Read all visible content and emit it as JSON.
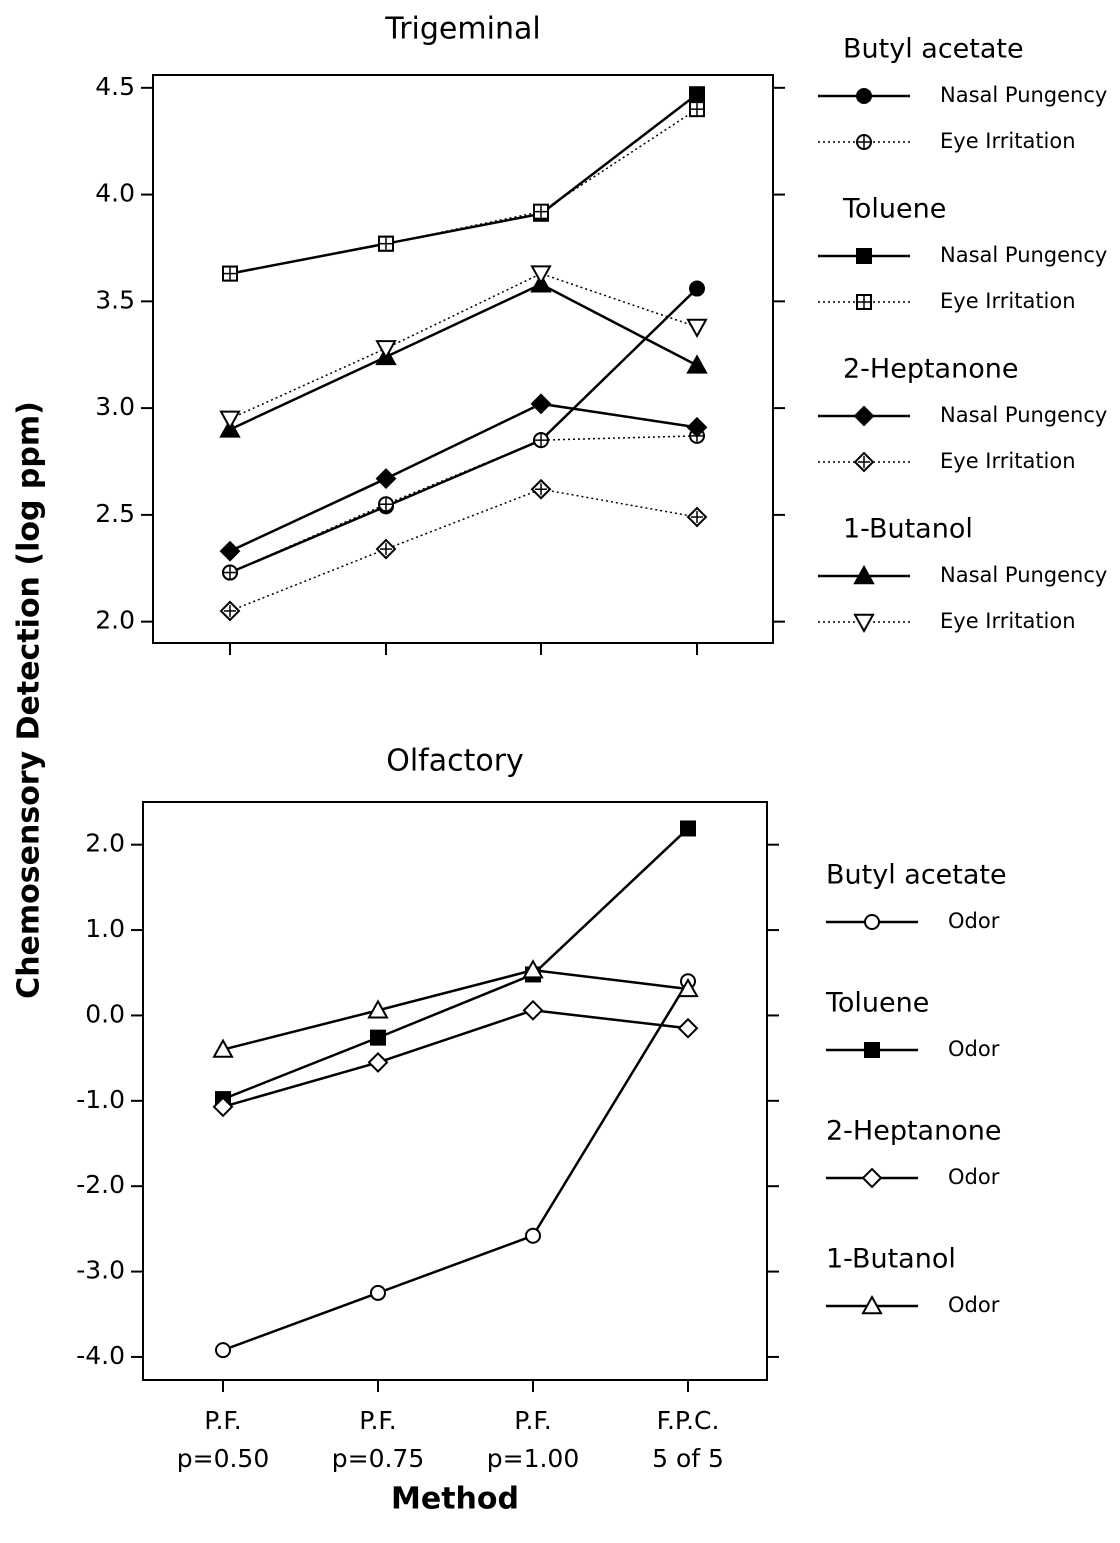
{
  "chart_data": [
    {
      "type": "line",
      "title": "Trigeminal",
      "ylabel": "Chemosensory  Detection  (log  ppm)",
      "categories": [
        null,
        null,
        null,
        null
      ],
      "ylim": [
        1.9,
        4.56
      ],
      "yticks": [
        {
          "value": 2,
          "label": "2.0"
        },
        {
          "value": 2.5,
          "label": "2.5"
        },
        {
          "value": 3,
          "label": "3.0"
        },
        {
          "value": 3.5,
          "label": "3.5"
        },
        {
          "value": 4,
          "label": "4.0"
        },
        {
          "value": 4.5,
          "label": "4.5"
        }
      ],
      "series": [
        {
          "group": "Butyl acetate",
          "name": "Nasal Pungency",
          "color": "#000000",
          "marker": "circle",
          "fill": "filled",
          "dash": "solid",
          "values": [
            2.23,
            2.54,
            2.85,
            3.56
          ]
        },
        {
          "group": "Butyl acetate",
          "name": "Eye  Irritation",
          "color": "#000000",
          "marker": "circle",
          "fill": "cross",
          "dash": "dotted",
          "values": [
            2.23,
            2.55,
            2.85,
            2.87
          ]
        },
        {
          "group": "Toluene",
          "name": "Nasal Pungency",
          "color": "#000000",
          "marker": "square",
          "fill": "filled",
          "dash": "solid",
          "values": [
            3.63,
            3.77,
            3.91,
            4.47
          ]
        },
        {
          "group": "Toluene",
          "name": "Eye  Irritation",
          "color": "#000000",
          "marker": "square",
          "fill": "cross",
          "dash": "dotted",
          "values": [
            3.63,
            3.77,
            3.92,
            4.4
          ]
        },
        {
          "group": "2-Heptanone",
          "name": "Nasal Pungency",
          "color": "#000000",
          "marker": "diamond",
          "fill": "filled",
          "dash": "solid",
          "values": [
            2.33,
            2.67,
            3.02,
            2.91
          ]
        },
        {
          "group": "2-Heptanone",
          "name": "Eye  Irritation",
          "color": "#000000",
          "marker": "diamond",
          "fill": "cross",
          "dash": "dotted",
          "values": [
            2.05,
            2.34,
            2.62,
            2.49
          ]
        },
        {
          "group": "1-Butanol",
          "name": "Nasal Pungency",
          "color": "#000000",
          "marker": "triangle",
          "fill": "filled",
          "dash": "solid",
          "values": [
            2.9,
            3.24,
            3.58,
            3.2
          ]
        },
        {
          "group": "1-Butanol",
          "name": "Eye  Irritation",
          "color": "#000000",
          "marker": "triangle-down",
          "fill": "open",
          "dash": "dotted",
          "values": [
            2.95,
            3.28,
            3.63,
            3.38
          ]
        }
      ]
    },
    {
      "type": "line",
      "title": "Olfactory",
      "xlabel": "Method",
      "categories": [
        [
          "P.F.",
          "p=0.50"
        ],
        [
          "P.F.",
          "p=0.75"
        ],
        [
          "P.F.",
          "p=1.00"
        ],
        [
          "F.P.C.",
          "5 of 5"
        ]
      ],
      "ylim": [
        -4.27,
        2.5
      ],
      "yticks": [
        {
          "value": -4,
          "label": "-4.0"
        },
        {
          "value": -3,
          "label": "-3.0"
        },
        {
          "value": -2,
          "label": "-2.0"
        },
        {
          "value": -1,
          "label": "-1.0"
        },
        {
          "value": 0,
          "label": "0.0"
        },
        {
          "value": 1,
          "label": "1.0"
        },
        {
          "value": 2,
          "label": "2.0"
        }
      ],
      "series": [
        {
          "group": "Butyl acetate",
          "name": "Odor",
          "color": "#000000",
          "marker": "circle",
          "fill": "open",
          "dash": "solid",
          "values": [
            -3.92,
            -3.25,
            -2.58,
            0.4
          ]
        },
        {
          "group": "Toluene",
          "name": "Odor",
          "color": "#000000",
          "marker": "square",
          "fill": "filled",
          "dash": "solid",
          "values": [
            -0.98,
            -0.26,
            0.48,
            2.19
          ]
        },
        {
          "group": "2-Heptanone",
          "name": "Odor",
          "color": "#000000",
          "marker": "diamond",
          "fill": "open",
          "dash": "solid",
          "values": [
            -1.07,
            -0.55,
            0.06,
            -0.15
          ]
        },
        {
          "group": "1-Butanol",
          "name": "Odor",
          "color": "#000000",
          "marker": "triangle",
          "fill": "open",
          "dash": "solid",
          "values": [
            -0.4,
            0.06,
            0.53,
            0.31
          ]
        }
      ]
    }
  ]
}
